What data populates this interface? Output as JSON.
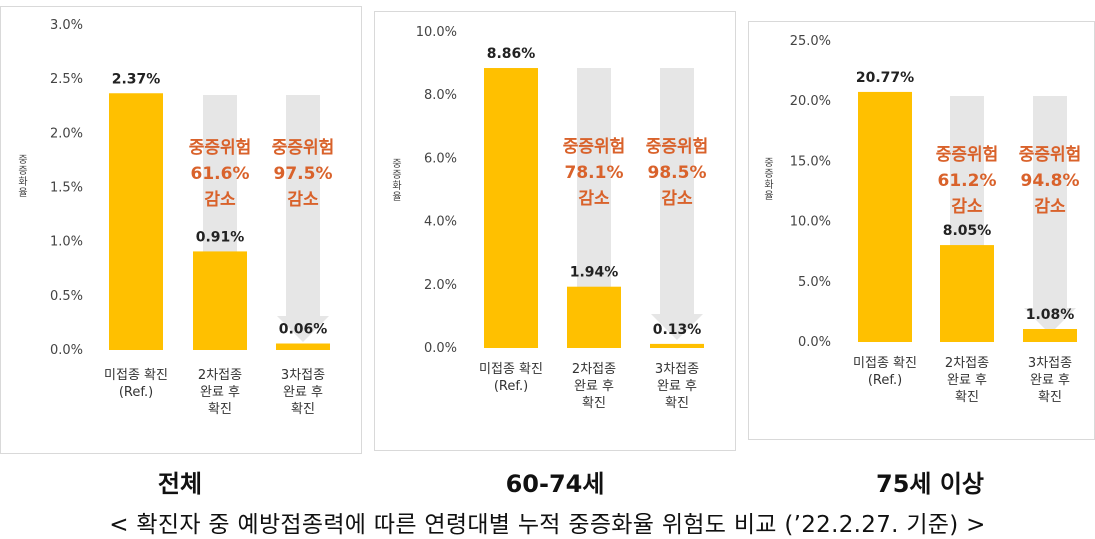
{
  "colors": {
    "bar": "#FFC000",
    "arrow": "#E6E6E6",
    "annotation": "#D9622B",
    "axis": "#444444"
  },
  "captions": [
    "전체",
    "60-74세",
    "75세 이상"
  ],
  "footer": "< 확진자 중 예방접종력에 따른 연령대별 누적 중증화율 위험도 비교 (’22.2.27. 기준) >",
  "chart_data": [
    {
      "type": "bar",
      "ylabel": "중증화율",
      "ylim": [
        0,
        3.0
      ],
      "yticks": [
        "0.0%",
        "0.5%",
        "1.0%",
        "1.5%",
        "2.0%",
        "2.5%",
        "3.0%"
      ],
      "categories": [
        [
          "미접종 확진",
          "(Ref.)"
        ],
        [
          "2차접종",
          "완료 후",
          "확진"
        ],
        [
          "3차접종",
          "완료 후",
          "확진"
        ]
      ],
      "values": [
        2.37,
        0.91,
        0.06
      ],
      "data_labels": [
        "2.37%",
        "0.91%",
        "0.06%"
      ],
      "annotations": [
        [
          "중증위험",
          "61.6%",
          "감소"
        ],
        [
          "중증위험",
          "97.5%",
          "감소"
        ]
      ]
    },
    {
      "type": "bar",
      "ylabel": "중증화율",
      "ylim": [
        0,
        10.0
      ],
      "yticks": [
        "0.0%",
        "2.0%",
        "4.0%",
        "6.0%",
        "8.0%",
        "10.0%"
      ],
      "categories": [
        [
          "미접종 확진",
          "(Ref.)"
        ],
        [
          "2차접종",
          "완료 후",
          "확진"
        ],
        [
          "3차접종",
          "완료 후",
          "확진"
        ]
      ],
      "values": [
        8.86,
        1.94,
        0.13
      ],
      "data_labels": [
        "8.86%",
        "1.94%",
        "0.13%"
      ],
      "annotations": [
        [
          "중증위험",
          "78.1%",
          "감소"
        ],
        [
          "중증위험",
          "98.5%",
          "감소"
        ]
      ]
    },
    {
      "type": "bar",
      "ylabel": "중증화율",
      "ylim": [
        0,
        25.0
      ],
      "yticks": [
        "0.0%",
        "5.0%",
        "10.0%",
        "15.0%",
        "20.0%",
        "25.0%"
      ],
      "categories": [
        [
          "미접종 확진",
          "(Ref.)"
        ],
        [
          "2차접종",
          "완료 후",
          "확진"
        ],
        [
          "3차접종",
          "완료 후",
          "확진"
        ]
      ],
      "values": [
        20.77,
        8.05,
        1.08
      ],
      "data_labels": [
        "20.77%",
        "8.05%",
        "1.08%"
      ],
      "annotations": [
        [
          "중증위험",
          "61.2%",
          "감소"
        ],
        [
          "중증위험",
          "94.8%",
          "감소"
        ]
      ]
    }
  ]
}
